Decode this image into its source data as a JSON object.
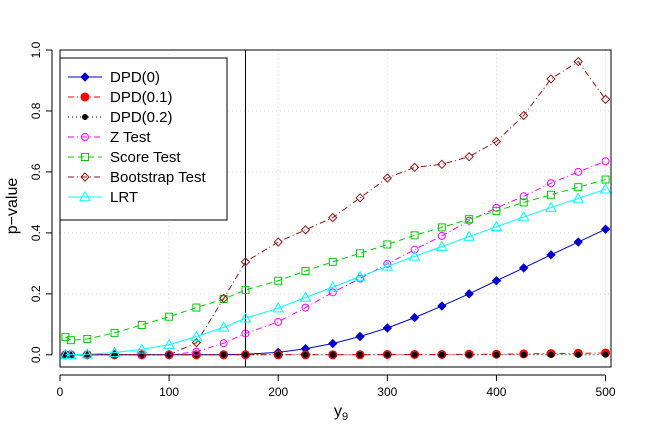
{
  "chart_data": {
    "type": "line",
    "title": "",
    "xlabel_main": "y",
    "xlabel_sub": "9",
    "ylabel": "p−value",
    "xlim": [
      0,
      505
    ],
    "ylim": [
      -0.04,
      1.0
    ],
    "xticks": [
      0,
      100,
      200,
      300,
      400,
      500
    ],
    "yticks": [
      0.0,
      0.2,
      0.4,
      0.6,
      0.8,
      1.0
    ],
    "ytick_labels": [
      "0.0",
      "0.2",
      "0.4",
      "0.6",
      "0.8",
      "1.0"
    ],
    "grid": true,
    "vline_x": 170,
    "legend_position": "top-left",
    "x": [
      5,
      10,
      25,
      50,
      75,
      100,
      125,
      150,
      170,
      200,
      225,
      250,
      275,
      300,
      325,
      350,
      375,
      400,
      425,
      450,
      475,
      500
    ],
    "series": [
      {
        "name": "DPD(0)",
        "color": "#0000CD",
        "marker": "diamond-filled",
        "dash": "",
        "values": [
          0.0,
          0.0,
          0.0,
          0.0,
          0.0,
          0.0,
          0.0,
          0.0,
          0.002,
          0.008,
          0.02,
          0.037,
          0.06,
          0.088,
          0.122,
          0.16,
          0.2,
          0.243,
          0.285,
          0.328,
          0.37,
          0.412
        ]
      },
      {
        "name": "DPD(0.1)",
        "color": "#FF0000",
        "marker": "circle-filled",
        "dash": "6,3,1,3",
        "values": [
          0.0,
          0.0,
          0.0,
          0.0,
          0.0,
          0.0,
          0.0,
          0.0,
          0.0,
          0.0,
          0.0,
          0.0,
          0.0,
          0.001,
          0.001,
          0.001,
          0.002,
          0.002,
          0.003,
          0.004,
          0.005,
          0.006
        ]
      },
      {
        "name": "DPD(0.2)",
        "color": "#000000",
        "marker": "circle-small",
        "dash": "1,3",
        "values": [
          0.0,
          0.0,
          0.0,
          0.0,
          0.0,
          0.0,
          0.0,
          0.0,
          0.0,
          0.0,
          0.0,
          0.0,
          0.0,
          0.0,
          0.0,
          0.0,
          0.0,
          0.0,
          0.0,
          0.0,
          0.0,
          0.0
        ]
      },
      {
        "name": "Z Test",
        "color": "#FF00FF",
        "marker": "circle-open",
        "dash": "6,3,1,3",
        "values": [
          0.0,
          0.0,
          0.0,
          0.0,
          0.0,
          0.0,
          0.01,
          0.038,
          0.07,
          0.108,
          0.155,
          0.205,
          0.25,
          0.298,
          0.345,
          0.39,
          0.44,
          0.482,
          0.52,
          0.563,
          0.6,
          0.635
        ]
      },
      {
        "name": "Score Test",
        "color": "#00CC00",
        "marker": "square-open",
        "dash": "6,4",
        "values": [
          0.058,
          0.048,
          0.052,
          0.072,
          0.098,
          0.125,
          0.155,
          0.183,
          0.213,
          0.243,
          0.275,
          0.305,
          0.333,
          0.362,
          0.392,
          0.418,
          0.445,
          0.472,
          0.5,
          0.525,
          0.55,
          0.575
        ]
      },
      {
        "name": "Bootstrap Test",
        "color": "#8B1A1A",
        "marker": "diamond-open",
        "dash": "6,3,1,3",
        "values": [
          0.0,
          0.0,
          0.0,
          0.0,
          0.0,
          0.0,
          0.04,
          0.185,
          0.305,
          0.37,
          0.41,
          0.45,
          0.515,
          0.58,
          0.615,
          0.625,
          0.65,
          0.7,
          0.785,
          0.905,
          0.962,
          0.838
        ]
      },
      {
        "name": "LRT",
        "color": "#00FFFF",
        "marker": "triangle-open",
        "dash": "",
        "values": [
          0.0,
          0.0,
          0.002,
          0.007,
          0.018,
          0.033,
          0.06,
          0.09,
          0.12,
          0.153,
          0.188,
          0.222,
          0.257,
          0.29,
          0.323,
          0.355,
          0.388,
          0.42,
          0.452,
          0.483,
          0.513,
          0.543
        ]
      }
    ]
  }
}
